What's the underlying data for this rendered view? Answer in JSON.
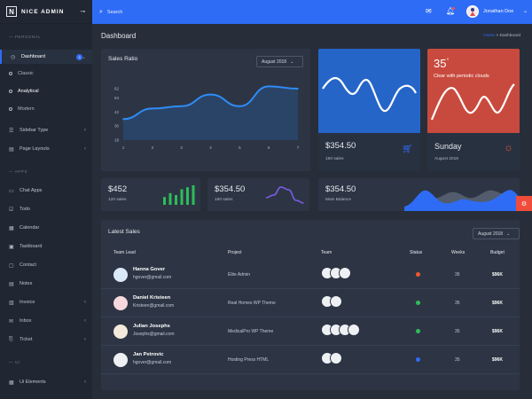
{
  "brand": {
    "logo": "N",
    "name": "NICE ADMIN"
  },
  "sidebar": {
    "section_personal": "— PERSONAL",
    "section_apps": "— APPS",
    "section_ui": "— UI",
    "dashboard": {
      "label": "Dashboard",
      "badge": "3"
    },
    "sub_items": [
      "Classic",
      "Analytical",
      "Modern"
    ],
    "items": [
      {
        "label": "Sidebar Type",
        "chevron": true
      },
      {
        "label": "Page Layouts",
        "chevron": true
      },
      {
        "label": "Chat Apps",
        "chevron": false
      },
      {
        "label": "Todo",
        "chevron": false
      },
      {
        "label": "Calendar",
        "chevron": false
      },
      {
        "label": "Taskboard",
        "chevron": false
      },
      {
        "label": "Contact",
        "chevron": false
      },
      {
        "label": "Notes",
        "chevron": false
      },
      {
        "label": "Invoice",
        "chevron": true
      },
      {
        "label": "Inbox",
        "chevron": true
      },
      {
        "label": "Ticket",
        "chevron": true
      },
      {
        "label": "Ui Elements",
        "chevron": true
      }
    ]
  },
  "topbar": {
    "search_placeholder": "Search",
    "user_name": "Jonathan Doe"
  },
  "page": {
    "title": "Dashboard",
    "breadcrumb_home": "Home",
    "breadcrumb_sep": ">",
    "breadcrumb_current": "Dashboard"
  },
  "sales_ratio": {
    "title": "Sales Ratio",
    "select": "August 2018",
    "chart_data": {
      "type": "area",
      "x": [
        1,
        2,
        3,
        4,
        5,
        6,
        7
      ],
      "y_ticks": [
        18,
        30,
        42,
        54,
        62
      ],
      "x_ticks": [
        "1",
        "2",
        "3",
        "4",
        "5",
        "6",
        "7"
      ],
      "values": [
        36,
        45,
        47,
        57,
        47,
        64,
        62
      ]
    }
  },
  "sales_card": {
    "value": "$354.50",
    "label": "160 sales"
  },
  "weather": {
    "temp": "35",
    "unit": "°",
    "condition": "Clear with periodic clouds",
    "day": "Sunday",
    "date": "August 2018"
  },
  "stat_cards": [
    {
      "value": "$452",
      "label": "120 sales",
      "bars": [
        4,
        6,
        5,
        8,
        9,
        10
      ]
    },
    {
      "value": "$354.50",
      "label": "160 sales",
      "line": [
        4,
        5,
        8,
        7,
        3,
        2
      ]
    },
    {
      "value": "$354.50",
      "label": "Main Balance"
    }
  ],
  "latest_sales": {
    "title": "Latest Sales",
    "select": "August 2018",
    "headers": [
      "Team Lead",
      "Project",
      "Team",
      "Status",
      "Weeks",
      "Budget"
    ],
    "rows": [
      {
        "name": "Hanna Gover",
        "email": "hgover@gmail.com",
        "project": "Elite Admin",
        "status_color": "#f0582e",
        "weeks": "35",
        "budget": "$96K",
        "team": 3
      },
      {
        "name": "Daniel Kristeen",
        "email": "Kristeen@gmail.com",
        "project": "Real Homes WP Theme",
        "status_color": "#2ebd59",
        "weeks": "35",
        "budget": "$96K",
        "team": 2
      },
      {
        "name": "Julian Josephs",
        "email": "Josephs@gmail.com",
        "project": "MedicalPro WP Theme",
        "status_color": "#2ebd59",
        "weeks": "35",
        "budget": "$96K",
        "team": 4
      },
      {
        "name": "Jan Petrovic",
        "email": "hgover@gmail.com",
        "project": "Hosting Press HTML",
        "status_color": "#2f6cf6",
        "weeks": "35",
        "budget": "$96K",
        "team": 2
      }
    ]
  },
  "colors": {
    "accent": "#2f6cf6",
    "weather": "#c84a3e",
    "green_bars": "#2ebd59",
    "purple_line": "#7b5ce8"
  }
}
